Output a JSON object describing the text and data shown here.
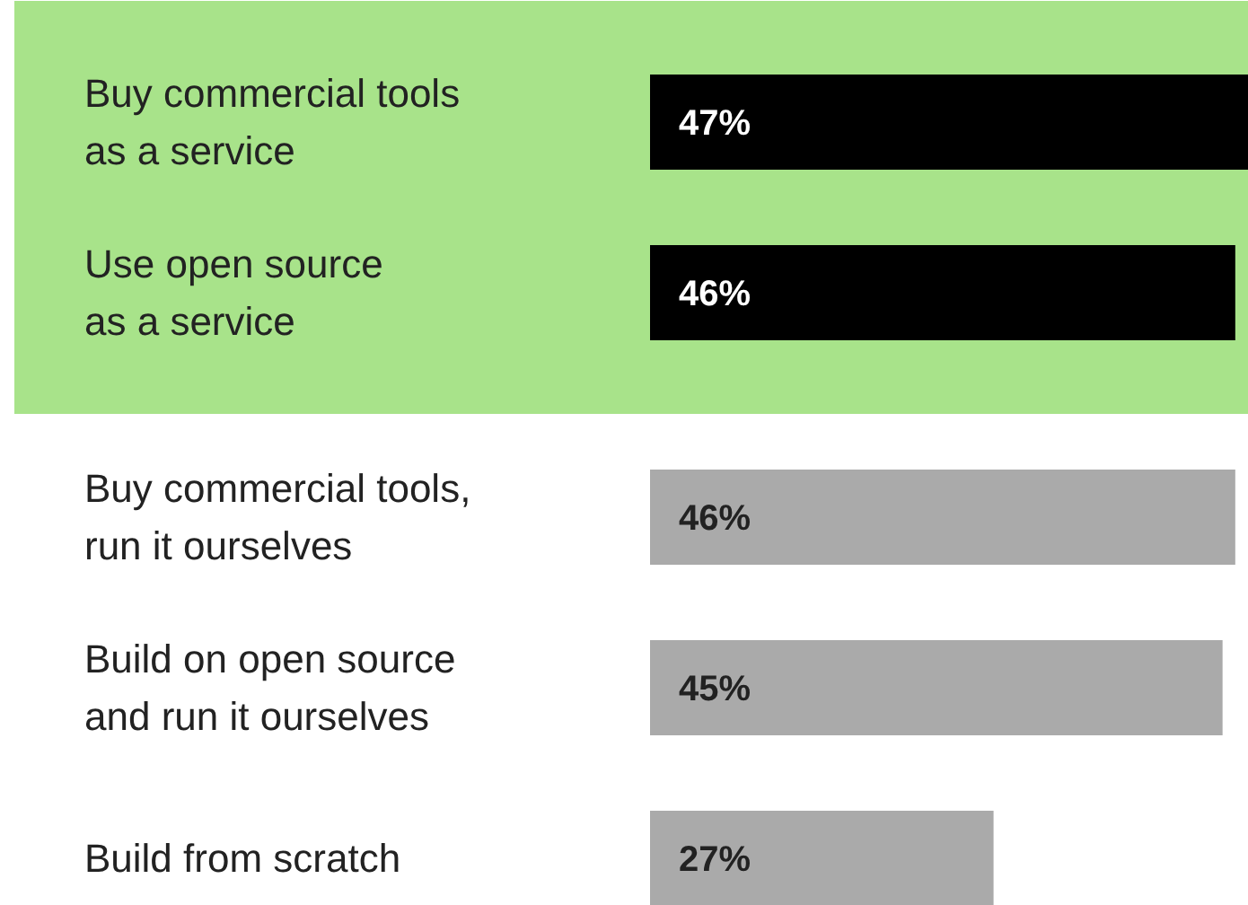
{
  "chart_data": {
    "type": "bar",
    "orientation": "horizontal",
    "categories": [
      "Buy commercial tools\nas a service",
      "Use open source\nas a service",
      "Buy commercial tools,\nrun it ourselves",
      "Build on open source\nand run it ourselves",
      "Build from scratch"
    ],
    "values": [
      47,
      46,
      46,
      45,
      27
    ],
    "colors": [
      "#000000",
      "#000000",
      "#aaaaaa",
      "#aaaaaa",
      "#aaaaaa"
    ],
    "value_labels": [
      "47%",
      "46%",
      "46%",
      "45%",
      "27%"
    ],
    "xlim": [
      0,
      47
    ],
    "bands": [
      {
        "axis": "y",
        "from": "Buy commercial tools\nas a service",
        "to": "Use open source\nas a service",
        "color": "#a8e38a"
      }
    ]
  }
}
